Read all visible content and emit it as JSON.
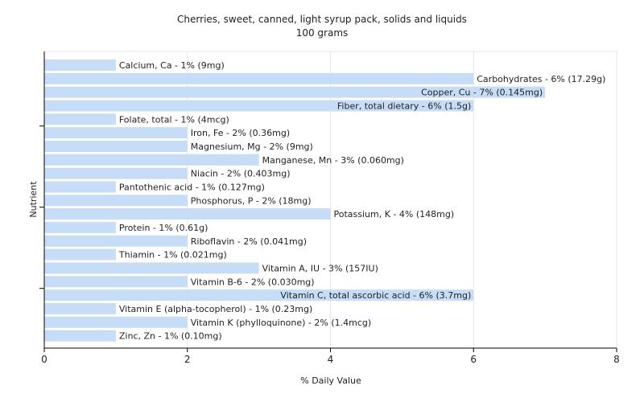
{
  "chart_data": {
    "type": "bar",
    "orientation": "horizontal",
    "title": "Cherries, sweet, canned, light syrup pack, solids and liquids",
    "subtitle": "100 grams",
    "xlabel": "% Daily Value",
    "ylabel": "Nutrient",
    "xlim": [
      0,
      8
    ],
    "xticks": [
      "0",
      "2",
      "4",
      "6",
      "8"
    ],
    "grid": true,
    "bar_color": "#c6dcf7",
    "categories": [
      "Calcium, Ca",
      "Carbohydrates",
      "Copper, Cu",
      "Fiber, total dietary",
      "Folate, total",
      "Iron, Fe",
      "Magnesium, Mg",
      "Manganese, Mn",
      "Niacin",
      "Pantothenic acid",
      "Phosphorus, P",
      "Potassium, K",
      "Protein",
      "Riboflavin",
      "Thiamin",
      "Vitamin A, IU",
      "Vitamin B-6",
      "Vitamin C, total ascorbic acid",
      "Vitamin E (alpha-tocopherol)",
      "Vitamin K (phylloquinone)",
      "Zinc, Zn"
    ],
    "values": [
      1,
      6,
      7,
      6,
      1,
      2,
      2,
      3,
      2,
      1,
      2,
      4,
      1,
      2,
      1,
      3,
      2,
      6,
      1,
      2,
      1
    ],
    "labels": [
      "Calcium, Ca - 1% (9mg)",
      "Carbohydrates - 6% (17.29g)",
      "Copper, Cu - 7% (0.145mg)",
      "Fiber, total dietary - 6% (1.5g)",
      "Folate, total - 1% (4mcg)",
      "Iron, Fe - 2% (0.36mg)",
      "Magnesium, Mg - 2% (9mg)",
      "Manganese, Mn - 3% (0.060mg)",
      "Niacin - 2% (0.403mg)",
      "Pantothenic acid - 1% (0.127mg)",
      "Phosphorus, P - 2% (18mg)",
      "Potassium, K - 4% (148mg)",
      "Protein - 1% (0.61g)",
      "Riboflavin - 2% (0.041mg)",
      "Thiamin - 1% (0.021mg)",
      "Vitamin A, IU - 3% (157IU)",
      "Vitamin B-6 - 2% (0.030mg)",
      "Vitamin C, total ascorbic acid - 6% (3.7mg)",
      "Vitamin E (alpha-tocopherol) - 1% (0.23mg)",
      "Vitamin K (phylloquinone) - 2% (1.4mcg)",
      "Zinc, Zn - 1% (0.10mg)"
    ]
  }
}
